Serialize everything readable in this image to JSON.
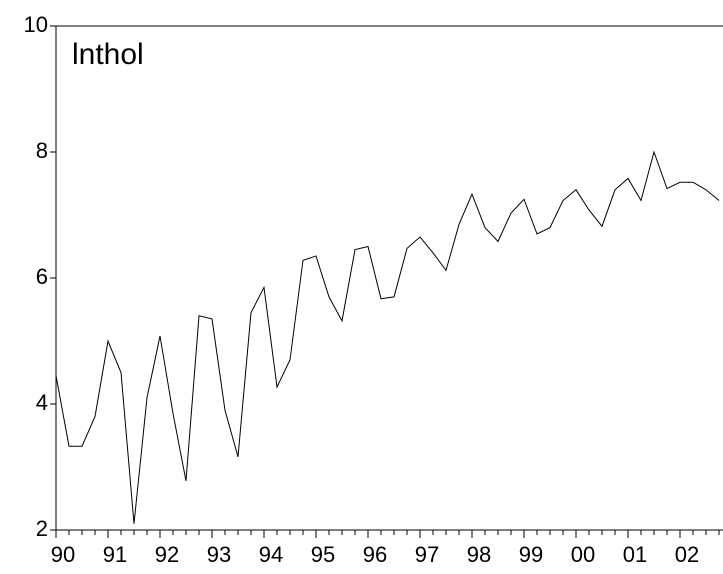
{
  "chart_data": {
    "type": "line",
    "title": "lnthol",
    "categories": [
      "90",
      null,
      null,
      null,
      "91",
      null,
      null,
      null,
      "92",
      null,
      null,
      null,
      "93",
      null,
      null,
      null,
      "94",
      null,
      null,
      null,
      "95",
      null,
      null,
      null,
      "96",
      null,
      null,
      null,
      "97",
      null,
      null,
      null,
      "98",
      null,
      null,
      null,
      "99",
      null,
      null,
      null,
      "00",
      null,
      null,
      null,
      "01",
      null,
      null,
      null,
      "02",
      null,
      null,
      null
    ],
    "values": [
      4.45,
      3.33,
      3.33,
      3.8,
      5.0,
      4.5,
      2.1,
      4.1,
      5.08,
      3.85,
      2.78,
      5.4,
      5.35,
      3.9,
      3.16,
      5.45,
      5.85,
      4.27,
      4.7,
      6.28,
      6.35,
      5.7,
      5.32,
      6.45,
      6.5,
      5.67,
      5.7,
      6.47,
      6.65,
      6.4,
      6.12,
      6.85,
      7.33,
      6.8,
      6.58,
      7.03,
      7.25,
      6.7,
      6.8,
      7.23,
      7.4,
      7.08,
      6.82,
      7.4,
      7.58,
      7.23,
      8.0,
      7.42,
      7.52,
      7.52,
      7.4,
      7.23
    ],
    "color": "#000000",
    "ylim": [
      2,
      10
    ],
    "yticks": [
      2,
      4,
      6,
      8,
      10
    ]
  }
}
